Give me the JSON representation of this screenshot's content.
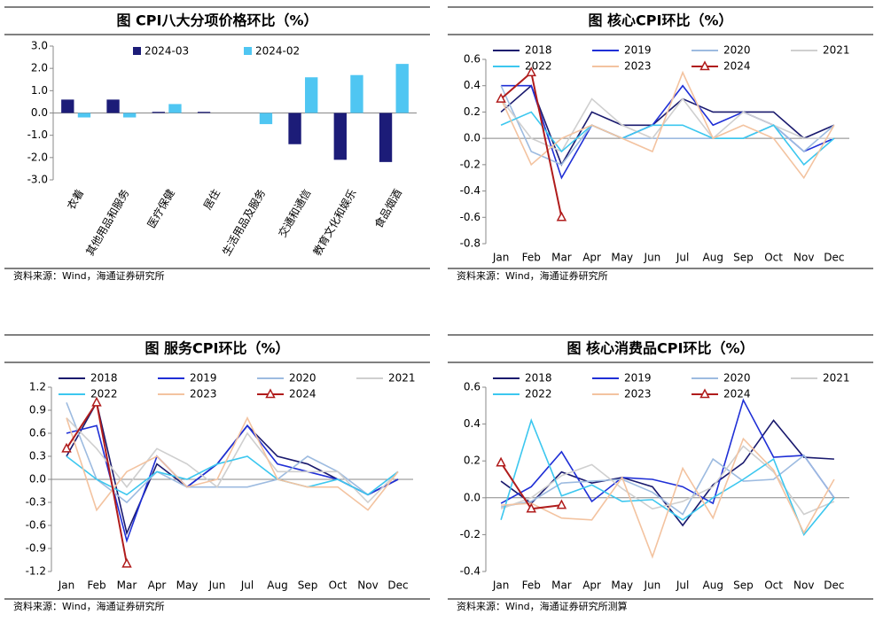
{
  "chart_data": [
    {
      "type": "bar",
      "title": "图 CPI八大分项价格环比（%）",
      "source": "资料来源：Wind，海通证券研究所",
      "categories": [
        "衣着",
        "其他用品和服务",
        "医疗保健",
        "居住",
        "生活用品及服务",
        "交通和通信",
        "教育文化和娱乐",
        "食品烟酒"
      ],
      "series": [
        {
          "name": "2024-03",
          "color": "#1c1c78",
          "values": [
            0.6,
            0.6,
            0.05,
            0.05,
            0,
            -1.4,
            -2.1,
            -2.2
          ]
        },
        {
          "name": "2024-02",
          "color": "#4fc6f2",
          "values": [
            -0.2,
            -0.2,
            0.4,
            0,
            -0.5,
            1.6,
            1.7,
            2.2
          ]
        }
      ],
      "ylim": [
        -3,
        3
      ],
      "yticks": [
        {
          "value": 3,
          "label": "3.0"
        },
        {
          "value": 2,
          "label": "2.0"
        },
        {
          "value": 1,
          "label": "1.0"
        },
        {
          "value": 0,
          "label": "0.0"
        },
        {
          "value": -1,
          "label": "-1.0"
        },
        {
          "value": -2,
          "label": "-2.0"
        },
        {
          "value": -3,
          "label": "-3.0"
        }
      ]
    },
    {
      "type": "line",
      "title": "图 核心CPI环比（%）",
      "source": "资料来源：Wind，海通证券研究所",
      "categories": [
        "Jan",
        "Feb",
        "Mar",
        "Apr",
        "May",
        "Jun",
        "Jul",
        "Aug",
        "Sep",
        "Oct",
        "Nov",
        "Dec"
      ],
      "series": [
        {
          "name": "2018",
          "color": "#1a1a6e",
          "values": [
            0.2,
            0.4,
            -0.2,
            0.2,
            0.1,
            0.1,
            0.3,
            0.2,
            0.2,
            0.2,
            0.0,
            0.1
          ]
        },
        {
          "name": "2019",
          "color": "#1f2fd6",
          "values": [
            0.4,
            0.4,
            -0.3,
            0.1,
            0.0,
            0.1,
            0.4,
            0.1,
            0.2,
            0.1,
            -0.1,
            0.0
          ]
        },
        {
          "name": "2020",
          "color": "#9dbbe0",
          "values": [
            0.4,
            -0.1,
            -0.2,
            0.1,
            0.0,
            0.0,
            0.0,
            0.0,
            0.0,
            0.1,
            -0.1,
            0.1
          ]
        },
        {
          "name": "2021",
          "color": "#cfcfcf",
          "values": [
            0.3,
            0.0,
            -0.1,
            0.3,
            0.1,
            0.0,
            0.3,
            0.0,
            0.2,
            0.1,
            0.0,
            0.0
          ]
        },
        {
          "name": "2022",
          "color": "#3cc7ef",
          "values": [
            0.1,
            0.2,
            -0.1,
            0.1,
            0.0,
            0.1,
            0.1,
            0.0,
            0.0,
            0.1,
            -0.2,
            0.0
          ]
        },
        {
          "name": "2023",
          "color": "#f3c3a0",
          "values": [
            0.3,
            -0.2,
            0.0,
            0.1,
            0.0,
            -0.1,
            0.5,
            0.0,
            0.1,
            0.0,
            -0.3,
            0.1
          ]
        },
        {
          "name": "2024",
          "color": "#b01c1c",
          "marker": "triangle",
          "values": [
            0.3,
            0.5,
            -0.6,
            null,
            null,
            null,
            null,
            null,
            null,
            null,
            null,
            null
          ]
        }
      ],
      "ylim": [
        -0.8,
        0.6
      ],
      "yticks": [
        0.6,
        0.4,
        0.2,
        {
          "value": 0,
          "label": "0.0"
        },
        -0.2,
        -0.4,
        -0.6,
        -0.8
      ]
    },
    {
      "type": "line",
      "title": "图 服务CPI环比（%）",
      "source": "资料来源：Wind，海通证券研究所",
      "categories": [
        "Jan",
        "Feb",
        "Mar",
        "Apr",
        "May",
        "Jun",
        "Jul",
        "Aug",
        "Sep",
        "Oct",
        "Nov",
        "Dec"
      ],
      "series": [
        {
          "name": "2018",
          "color": "#1a1a6e",
          "values": [
            0.3,
            1.0,
            -0.7,
            0.2,
            -0.1,
            0.2,
            0.7,
            0.3,
            0.2,
            0.0,
            -0.2,
            0.0
          ]
        },
        {
          "name": "2019",
          "color": "#1f2fd6",
          "values": [
            0.6,
            0.7,
            -0.8,
            0.3,
            -0.1,
            0.2,
            0.7,
            0.2,
            0.1,
            0.0,
            -0.2,
            0.0
          ]
        },
        {
          "name": "2020",
          "color": "#9dbbe0",
          "values": [
            1.0,
            0.0,
            -0.3,
            0.1,
            -0.1,
            -0.1,
            -0.1,
            0.0,
            0.3,
            0.1,
            -0.2,
            0.1
          ]
        },
        {
          "name": "2021",
          "color": "#cfcfcf",
          "values": [
            0.8,
            0.4,
            -0.1,
            0.4,
            0.2,
            -0.1,
            0.6,
            0.1,
            0.1,
            0.1,
            -0.3,
            0.1
          ]
        },
        {
          "name": "2022",
          "color": "#3cc7ef",
          "values": [
            0.3,
            0.0,
            -0.2,
            0.1,
            0.0,
            0.2,
            0.3,
            0.0,
            -0.1,
            0.0,
            -0.2,
            0.1
          ]
        },
        {
          "name": "2023",
          "color": "#f3c3a0",
          "values": [
            0.8,
            -0.4,
            0.1,
            0.3,
            -0.1,
            0.0,
            0.8,
            0.0,
            -0.1,
            -0.1,
            -0.4,
            0.1
          ]
        },
        {
          "name": "2024",
          "color": "#b01c1c",
          "marker": "triangle",
          "values": [
            0.4,
            1.0,
            -1.1,
            null,
            null,
            null,
            null,
            null,
            null,
            null,
            null,
            null
          ]
        }
      ],
      "ylim": [
        -1.2,
        1.2
      ],
      "yticks": [
        1.2,
        0.9,
        0.6,
        0.3,
        {
          "value": 0,
          "label": "0.0"
        },
        -0.3,
        -0.6,
        -0.9,
        -1.2
      ]
    },
    {
      "type": "line",
      "title": "图 核心消费品CPI环比（%）",
      "source": "资料来源：Wind，海通证券研究所测算",
      "categories": [
        "Jan",
        "Feb",
        "Mar",
        "Apr",
        "May",
        "Jun",
        "Jul",
        "Aug",
        "Sep",
        "Oct",
        "Nov",
        "Dec"
      ],
      "series": [
        {
          "name": "2018",
          "color": "#1a1a6e",
          "values": [
            0.09,
            -0.03,
            0.14,
            0.08,
            0.11,
            0.06,
            -0.15,
            0.07,
            0.19,
            0.42,
            0.22,
            0.21
          ]
        },
        {
          "name": "2019",
          "color": "#1f2fd6",
          "values": [
            -0.03,
            0.06,
            0.25,
            -0.02,
            0.11,
            0.1,
            0.06,
            -0.03,
            0.53,
            0.22,
            0.23,
            0.0
          ]
        },
        {
          "name": "2020",
          "color": "#9dbbe0",
          "values": [
            -0.05,
            -0.02,
            0.08,
            0.09,
            0.1,
            0.03,
            -0.09,
            0.21,
            0.09,
            0.1,
            0.23,
            0.0
          ]
        },
        {
          "name": "2021",
          "color": "#cfcfcf",
          "values": [
            -0.06,
            0.0,
            0.12,
            0.18,
            0.05,
            -0.06,
            -0.02,
            0.06,
            0.28,
            0.14,
            -0.09,
            -0.02
          ]
        },
        {
          "name": "2022",
          "color": "#3cc7ef",
          "values": [
            -0.12,
            0.42,
            0.01,
            0.07,
            -0.02,
            -0.01,
            -0.12,
            0.0,
            0.1,
            0.21,
            -0.2,
            0.0
          ]
        },
        {
          "name": "2023",
          "color": "#f3c3a0",
          "values": [
            -0.04,
            -0.03,
            -0.11,
            -0.12,
            0.11,
            -0.32,
            0.16,
            -0.11,
            0.32,
            0.15,
            -0.19,
            0.1
          ]
        },
        {
          "name": "2024",
          "color": "#b01c1c",
          "marker": "triangle",
          "values": [
            0.19,
            -0.06,
            -0.04,
            null,
            null,
            null,
            null,
            null,
            null,
            null,
            null,
            null
          ]
        }
      ],
      "ylim": [
        -0.4,
        0.6
      ],
      "yticks": [
        0.6,
        0.4,
        0.2,
        {
          "value": 0,
          "label": "0.0"
        },
        -0.2,
        -0.4
      ]
    }
  ]
}
